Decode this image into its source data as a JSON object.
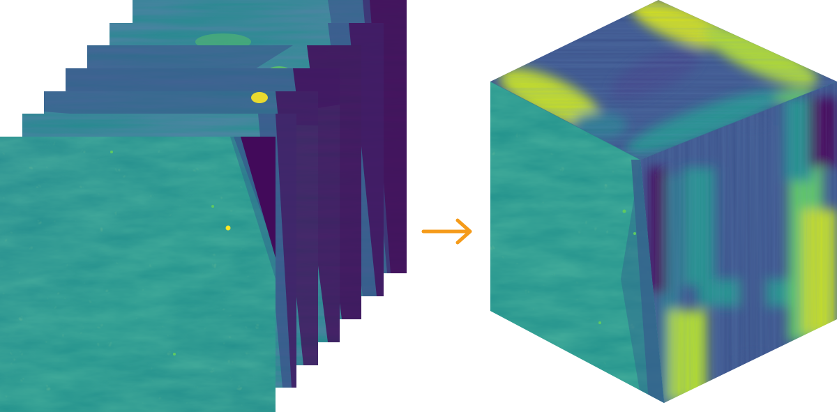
{
  "diagram": {
    "slice_count": 7,
    "colormap": [
      "#440154",
      "#3b528b",
      "#21918c",
      "#5ec962",
      "#fde725"
    ],
    "arrow_color": "#f59b1a",
    "arrow_direction": "right"
  }
}
